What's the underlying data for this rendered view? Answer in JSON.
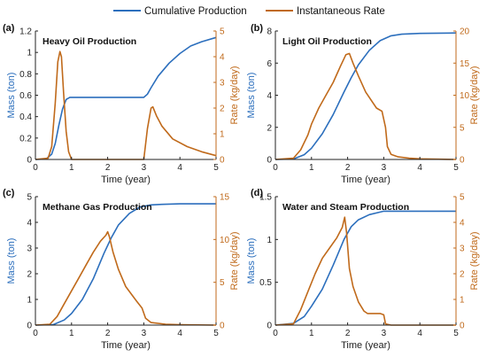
{
  "colors": {
    "left": "#2c6fbd",
    "right": "#c06a1b",
    "axis": "#222222",
    "text": "#222222"
  },
  "legend": [
    {
      "label": "Cumulative Production",
      "color": "#2c6fbd"
    },
    {
      "label": "Instantaneous Rate",
      "color": "#c06a1b"
    }
  ],
  "chart_data": [
    {
      "letter": "(a)",
      "title": "Heavy Oil Production",
      "type": "line",
      "xlabel": "Time (year)",
      "ylabel": "Mass (ton)",
      "y2label": "Rate (kg/day)",
      "xlim": [
        0,
        5
      ],
      "xticks": [
        "0",
        "1",
        "2",
        "3",
        "4",
        "5"
      ],
      "ylim": [
        0,
        1.2
      ],
      "yticks": [
        "0",
        "0.2",
        "0.4",
        "0.6",
        "0.8",
        "1",
        "1.2"
      ],
      "y2lim": [
        0,
        5
      ],
      "y2ticks": [
        "0",
        "1",
        "2",
        "3",
        "4",
        "5"
      ],
      "series": [
        {
          "name": "Cumulative Production",
          "axis": "left",
          "x": [
            0,
            0.3,
            0.45,
            0.55,
            0.65,
            0.75,
            0.85,
            0.95,
            1.1,
            2.0,
            3.0,
            3.1,
            3.2,
            3.4,
            3.7,
            4.0,
            4.3,
            4.6,
            5.0
          ],
          "y": [
            0,
            0.005,
            0.05,
            0.15,
            0.32,
            0.47,
            0.56,
            0.58,
            0.58,
            0.58,
            0.58,
            0.61,
            0.67,
            0.78,
            0.9,
            0.99,
            1.06,
            1.1,
            1.14
          ]
        },
        {
          "name": "Instantaneous Rate",
          "axis": "right",
          "x": [
            0,
            0.35,
            0.45,
            0.55,
            0.62,
            0.68,
            0.72,
            0.78,
            0.85,
            0.92,
            1.0,
            3.0,
            3.1,
            3.2,
            3.25,
            3.35,
            3.5,
            3.8,
            4.2,
            4.6,
            5.0
          ],
          "y": [
            0,
            0.05,
            0.5,
            2.2,
            3.8,
            4.2,
            4.0,
            2.6,
            1.1,
            0.3,
            0,
            0,
            1.2,
            2.0,
            2.05,
            1.7,
            1.3,
            0.8,
            0.5,
            0.3,
            0.15
          ]
        }
      ]
    },
    {
      "letter": "(b)",
      "title": "Light Oil Production",
      "type": "line",
      "xlabel": "Time (year)",
      "ylabel": "Mass (ton)",
      "y2label": "Rate (kg/day)",
      "xlim": [
        0,
        5
      ],
      "xticks": [
        "0",
        "1",
        "2",
        "3",
        "4",
        "5"
      ],
      "ylim": [
        0,
        8
      ],
      "yticks": [
        "0",
        "2",
        "4",
        "6",
        "8"
      ],
      "y2lim": [
        0,
        20
      ],
      "y2ticks": [
        "0",
        "5",
        "10",
        "15",
        "20"
      ],
      "series": [
        {
          "name": "Cumulative Production",
          "axis": "left",
          "x": [
            0,
            0.5,
            0.8,
            1.0,
            1.3,
            1.6,
            1.9,
            2.1,
            2.3,
            2.6,
            2.9,
            3.2,
            3.5,
            4.0,
            5.0
          ],
          "y": [
            0,
            0.03,
            0.3,
            0.7,
            1.6,
            2.8,
            4.2,
            5.1,
            5.9,
            6.8,
            7.4,
            7.7,
            7.8,
            7.85,
            7.88
          ]
        },
        {
          "name": "Instantaneous Rate",
          "axis": "right",
          "x": [
            0,
            0.5,
            0.7,
            0.9,
            1.0,
            1.2,
            1.4,
            1.6,
            1.8,
            1.95,
            2.05,
            2.15,
            2.3,
            2.5,
            2.8,
            2.95,
            3.05,
            3.1,
            3.2,
            3.4,
            3.7,
            4.0,
            5.0
          ],
          "y": [
            0,
            0.2,
            1.5,
            3.8,
            5.5,
            8.0,
            10.0,
            12.0,
            14.5,
            16.3,
            16.5,
            15.0,
            13.0,
            10.5,
            8.0,
            7.5,
            5.0,
            2.0,
            0.8,
            0.4,
            0.2,
            0.1,
            0
          ]
        }
      ]
    },
    {
      "letter": "(c)",
      "title": "Methane Gas Production",
      "type": "line",
      "xlabel": "Time (year)",
      "ylabel": "Mass (ton)",
      "y2label": "Rate (kg/day)",
      "xlim": [
        0,
        5
      ],
      "xticks": [
        "0",
        "1",
        "2",
        "3",
        "4",
        "5"
      ],
      "ylim": [
        0,
        5
      ],
      "yticks": [
        "0",
        "1",
        "2",
        "3",
        "4",
        "5"
      ],
      "y2lim": [
        0,
        15
      ],
      "y2ticks": [
        "0",
        "5",
        "10",
        "15"
      ],
      "series": [
        {
          "name": "Cumulative Production",
          "axis": "left",
          "x": [
            0,
            0.5,
            0.8,
            1.0,
            1.3,
            1.6,
            1.9,
            2.1,
            2.3,
            2.6,
            2.9,
            3.2,
            3.5,
            4.0,
            5.0
          ],
          "y": [
            0,
            0.02,
            0.2,
            0.45,
            1.0,
            1.8,
            2.8,
            3.4,
            3.9,
            4.35,
            4.6,
            4.68,
            4.7,
            4.72,
            4.72
          ]
        },
        {
          "name": "Instantaneous Rate",
          "axis": "right",
          "x": [
            0,
            0.4,
            0.6,
            0.8,
            1.0,
            1.2,
            1.4,
            1.6,
            1.8,
            1.95,
            2.0,
            2.05,
            2.15,
            2.3,
            2.5,
            2.8,
            2.95,
            3.05,
            3.2,
            3.6,
            4.0,
            5.0
          ],
          "y": [
            0,
            0.1,
            1.0,
            2.5,
            4.0,
            5.5,
            7.0,
            8.5,
            9.8,
            10.5,
            10.9,
            10.3,
            8.5,
            6.5,
            4.5,
            2.8,
            2.0,
            0.8,
            0.3,
            0.1,
            0.05,
            0
          ]
        }
      ]
    },
    {
      "letter": "(d)",
      "title": "Water and Steam Production",
      "type": "line",
      "xlabel": "Time (year)",
      "ylabel": "Mass (ton)",
      "y2label": "Rate (kg/day)",
      "xlim": [
        0,
        5
      ],
      "xticks": [
        "0",
        "1",
        "2",
        "3",
        "4",
        "5"
      ],
      "ylim": [
        0,
        1.5
      ],
      "yticks": [
        "0",
        "0.5",
        "1",
        "1.5"
      ],
      "y2lim": [
        0,
        5
      ],
      "y2ticks": [
        "0",
        "1",
        "2",
        "3",
        "4",
        "5"
      ],
      "series": [
        {
          "name": "Cumulative Production",
          "axis": "left",
          "x": [
            0,
            0.5,
            0.8,
            1.0,
            1.3,
            1.6,
            1.9,
            2.1,
            2.3,
            2.6,
            2.9,
            3.0,
            3.5,
            4.0,
            5.0
          ],
          "y": [
            0,
            0.02,
            0.1,
            0.22,
            0.42,
            0.7,
            1.0,
            1.15,
            1.23,
            1.29,
            1.32,
            1.33,
            1.33,
            1.33,
            1.33
          ]
        },
        {
          "name": "Instantaneous Rate",
          "axis": "right",
          "x": [
            0,
            0.5,
            0.7,
            0.9,
            1.1,
            1.3,
            1.5,
            1.7,
            1.85,
            1.92,
            1.97,
            2.05,
            2.15,
            2.3,
            2.45,
            2.55,
            2.9,
            3.0,
            3.05,
            3.2,
            5.0
          ],
          "y": [
            0,
            0.05,
            0.6,
            1.3,
            2.0,
            2.6,
            3.0,
            3.4,
            3.8,
            4.2,
            3.6,
            2.2,
            1.5,
            0.9,
            0.55,
            0.45,
            0.45,
            0.4,
            0.05,
            0,
            0
          ]
        }
      ]
    }
  ]
}
